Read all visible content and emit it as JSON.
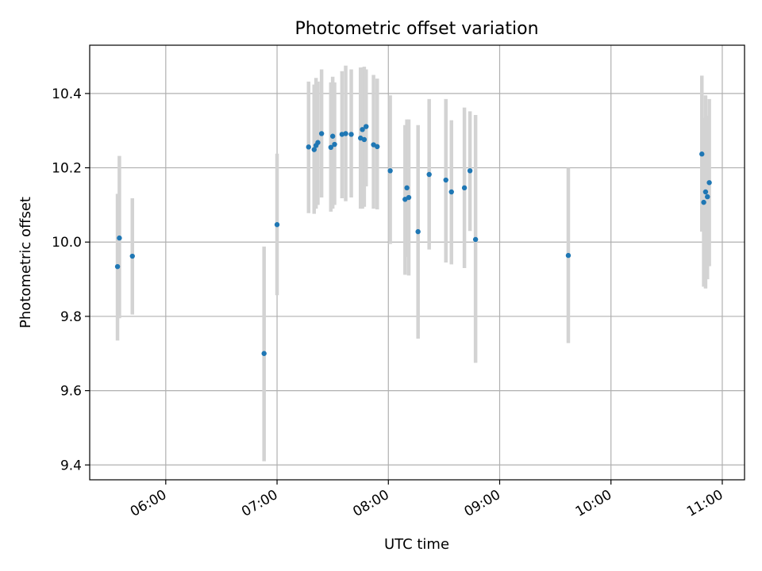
{
  "chart_data": {
    "type": "scatter",
    "title": "Photometric offset variation",
    "xlabel": "UTC time",
    "ylabel": "Photometric offset",
    "x_ticks": [
      "06:00",
      "07:00",
      "08:00",
      "09:00",
      "10:00",
      "11:00"
    ],
    "y_ticks": [
      "9.4",
      "9.6",
      "9.8",
      "10.0",
      "10.2",
      "10.4"
    ],
    "xlim": [
      "05:19",
      "11:12"
    ],
    "ylim": [
      9.36,
      10.53
    ],
    "grid": true,
    "colors": {
      "point": "#1f77b4",
      "errorbar": "#d3d3d3",
      "grid": "#b0b0b0"
    },
    "points": [
      {
        "x": "05:34",
        "y": 9.934,
        "yerr_low": 9.735,
        "yerr_high": 10.13
      },
      {
        "x": "05:35",
        "y": 10.011,
        "yerr_low": 9.795,
        "yerr_high": 10.232
      },
      {
        "x": "05:42",
        "y": 9.962,
        "yerr_low": 9.805,
        "yerr_high": 10.118
      },
      {
        "x": "06:53",
        "y": 9.7,
        "yerr_low": 9.41,
        "yerr_high": 9.988
      },
      {
        "x": "07:00",
        "y": 10.047,
        "yerr_low": 9.857,
        "yerr_high": 10.238
      },
      {
        "x": "07:17",
        "y": 10.256,
        "yerr_low": 10.078,
        "yerr_high": 10.432
      },
      {
        "x": "07:20",
        "y": 10.249,
        "yerr_low": 10.076,
        "yerr_high": 10.424
      },
      {
        "x": "07:21",
        "y": 10.26,
        "yerr_low": 10.09,
        "yerr_high": 10.442
      },
      {
        "x": "07:22",
        "y": 10.268,
        "yerr_low": 10.1,
        "yerr_high": 10.432
      },
      {
        "x": "07:24",
        "y": 10.292,
        "yerr_low": 10.12,
        "yerr_high": 10.465
      },
      {
        "x": "07:29",
        "y": 10.255,
        "yerr_low": 10.082,
        "yerr_high": 10.43
      },
      {
        "x": "07:30",
        "y": 10.285,
        "yerr_low": 10.09,
        "yerr_high": 10.445
      },
      {
        "x": "07:31",
        "y": 10.263,
        "yerr_low": 10.1,
        "yerr_high": 10.43
      },
      {
        "x": "07:35",
        "y": 10.29,
        "yerr_low": 10.118,
        "yerr_high": 10.46
      },
      {
        "x": "07:37",
        "y": 10.292,
        "yerr_low": 10.11,
        "yerr_high": 10.475
      },
      {
        "x": "07:40",
        "y": 10.29,
        "yerr_low": 10.12,
        "yerr_high": 10.465
      },
      {
        "x": "07:45",
        "y": 10.28,
        "yerr_low": 10.09,
        "yerr_high": 10.47
      },
      {
        "x": "07:46",
        "y": 10.303,
        "yerr_low": 10.09,
        "yerr_high": 10.47
      },
      {
        "x": "07:47",
        "y": 10.276,
        "yerr_low": 10.095,
        "yerr_high": 10.472
      },
      {
        "x": "07:48",
        "y": 10.311,
        "yerr_low": 10.15,
        "yerr_high": 10.465
      },
      {
        "x": "07:52",
        "y": 10.262,
        "yerr_low": 10.09,
        "yerr_high": 10.45
      },
      {
        "x": "07:54",
        "y": 10.257,
        "yerr_low": 10.088,
        "yerr_high": 10.44
      },
      {
        "x": "08:01",
        "y": 10.192,
        "yerr_low": 9.995,
        "yerr_high": 10.395
      },
      {
        "x": "08:09",
        "y": 10.115,
        "yerr_low": 9.912,
        "yerr_high": 10.315
      },
      {
        "x": "08:10",
        "y": 10.146,
        "yerr_low": 9.96,
        "yerr_high": 10.33
      },
      {
        "x": "08:11",
        "y": 10.12,
        "yerr_low": 9.91,
        "yerr_high": 10.33
      },
      {
        "x": "08:16",
        "y": 10.028,
        "yerr_low": 9.74,
        "yerr_high": 10.315
      },
      {
        "x": "08:22",
        "y": 10.182,
        "yerr_low": 9.98,
        "yerr_high": 10.385
      },
      {
        "x": "08:31",
        "y": 10.167,
        "yerr_low": 9.945,
        "yerr_high": 10.385
      },
      {
        "x": "08:34",
        "y": 10.135,
        "yerr_low": 9.94,
        "yerr_high": 10.328
      },
      {
        "x": "08:41",
        "y": 10.146,
        "yerr_low": 9.93,
        "yerr_high": 10.362
      },
      {
        "x": "08:44",
        "y": 10.192,
        "yerr_low": 10.03,
        "yerr_high": 10.352
      },
      {
        "x": "08:47",
        "y": 10.007,
        "yerr_low": 9.675,
        "yerr_high": 10.342
      },
      {
        "x": "09:37",
        "y": 9.964,
        "yerr_low": 9.728,
        "yerr_high": 10.2
      },
      {
        "x": "10:49",
        "y": 10.237,
        "yerr_low": 10.028,
        "yerr_high": 10.448
      },
      {
        "x": "10:50",
        "y": 10.107,
        "yerr_low": 9.88,
        "yerr_high": 10.335
      },
      {
        "x": "10:51",
        "y": 10.135,
        "yerr_low": 9.875,
        "yerr_high": 10.395
      },
      {
        "x": "10:52",
        "y": 10.122,
        "yerr_low": 9.9,
        "yerr_high": 10.34
      },
      {
        "x": "10:53",
        "y": 10.16,
        "yerr_low": 9.935,
        "yerr_high": 10.385
      }
    ]
  }
}
